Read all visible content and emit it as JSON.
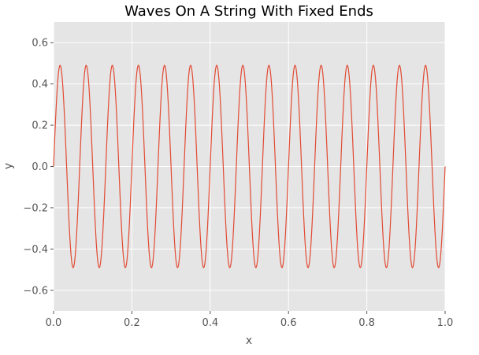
{
  "chart_data": {
    "type": "line",
    "title": "Waves On A String With Fixed Ends",
    "xlabel": "x",
    "ylabel": "y",
    "xlim": [
      0.0,
      1.0
    ],
    "ylim": [
      -0.7,
      0.7
    ],
    "xticks": [
      0.0,
      0.2,
      0.4,
      0.6,
      0.8,
      1.0
    ],
    "xtick_labels": [
      "0.0",
      "0.2",
      "0.4",
      "0.6",
      "0.8",
      "1.0"
    ],
    "yticks": [
      -0.6,
      -0.4,
      -0.2,
      0.0,
      0.2,
      0.4,
      0.6
    ],
    "ytick_labels": [
      "−0.6",
      "−0.4",
      "−0.2",
      "0.0",
      "0.2",
      "0.4",
      "0.6"
    ],
    "grid": true,
    "series": [
      {
        "function": "0.49*sin(30*pi*x)",
        "x_range": [
          0.0,
          1.0
        ],
        "amplitude": 0.49,
        "cycles": 15,
        "color": "#E24A33"
      }
    ]
  }
}
